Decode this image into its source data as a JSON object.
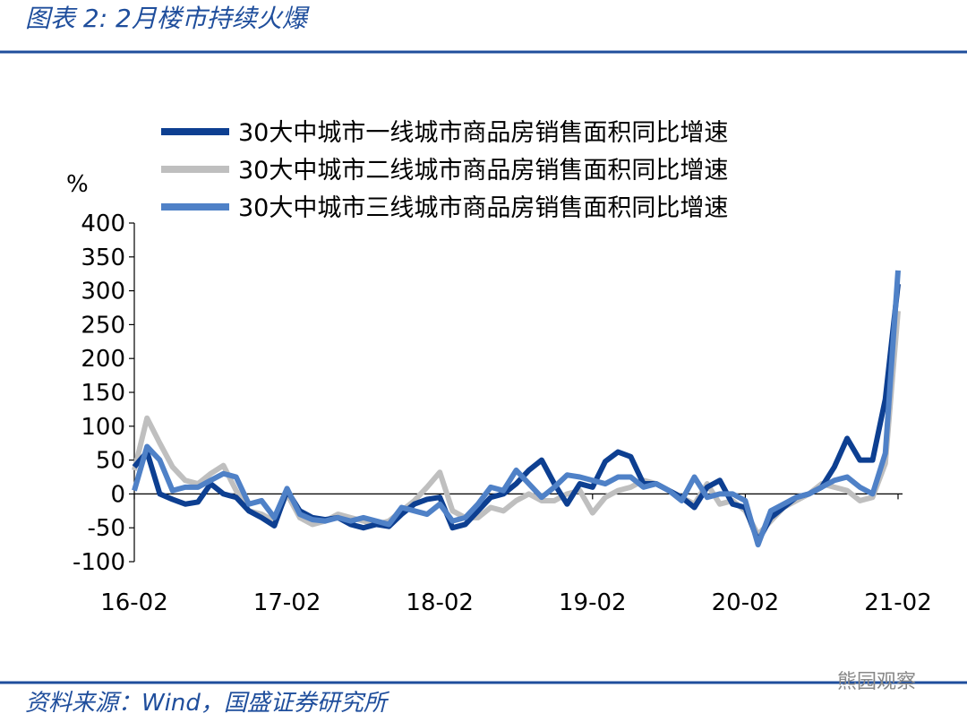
{
  "header": {
    "title": "图表 2:  2月楼市持续火爆"
  },
  "chart_data": {
    "type": "line",
    "y_label": "%",
    "categories": [
      "16-02",
      null,
      null,
      null,
      null,
      null,
      null,
      null,
      null,
      null,
      null,
      null,
      "17-02",
      null,
      null,
      null,
      null,
      null,
      null,
      null,
      null,
      null,
      null,
      null,
      "18-02",
      null,
      null,
      null,
      null,
      null,
      null,
      null,
      null,
      null,
      null,
      null,
      "19-02",
      null,
      null,
      null,
      null,
      null,
      null,
      null,
      null,
      null,
      null,
      null,
      "20-02",
      null,
      null,
      null,
      null,
      null,
      null,
      null,
      null,
      null,
      null,
      null,
      "21-02"
    ],
    "series": [
      {
        "name": "30大中城市一线城市商品房销售面积同比增速",
        "color": "#0d3f91",
        "values": [
          40,
          62,
          0,
          -8,
          -15,
          -12,
          15,
          0,
          -5,
          -25,
          -35,
          -47,
          5,
          -25,
          -35,
          -38,
          -35,
          -45,
          -50,
          -45,
          -48,
          -30,
          -15,
          -8,
          -5,
          -50,
          -45,
          -25,
          -5,
          0,
          15,
          35,
          50,
          15,
          -15,
          15,
          10,
          48,
          62,
          55,
          15,
          15,
          5,
          -5,
          -20,
          10,
          20,
          -15,
          -20,
          -70,
          -35,
          -20,
          -5,
          0,
          10,
          40,
          82,
          50,
          50,
          140,
          310
        ]
      },
      {
        "name": "30大中城市二线城市商品房销售面积同比增速",
        "color": "#bfbfbf",
        "values": [
          35,
          112,
          75,
          40,
          20,
          15,
          30,
          42,
          5,
          -25,
          -30,
          -40,
          0,
          -35,
          -45,
          -40,
          -30,
          -35,
          -40,
          -45,
          -40,
          -25,
          -10,
          10,
          32,
          -25,
          -35,
          -35,
          -20,
          -25,
          -10,
          0,
          -10,
          -10,
          0,
          5,
          -28,
          -5,
          5,
          10,
          20,
          15,
          5,
          -5,
          -15,
          15,
          -15,
          -10,
          -25,
          -60,
          -40,
          -20,
          -10,
          0,
          15,
          10,
          5,
          -10,
          -5,
          45,
          270
        ]
      },
      {
        "name": "30大中城市三线城市商品房销售面积同比增速",
        "color": "#4f81c7",
        "values": [
          5,
          70,
          50,
          5,
          10,
          10,
          20,
          30,
          25,
          -15,
          -10,
          -35,
          8,
          -30,
          -38,
          -40,
          -35,
          -40,
          -35,
          -40,
          -45,
          -20,
          -25,
          -30,
          -15,
          -40,
          -35,
          -15,
          10,
          5,
          35,
          15,
          -5,
          10,
          28,
          25,
          20,
          15,
          25,
          25,
          10,
          15,
          5,
          -10,
          25,
          -5,
          0,
          0,
          -10,
          -75,
          -25,
          -15,
          -5,
          0,
          10,
          20,
          25,
          10,
          0,
          60,
          330
        ]
      }
    ],
    "ylim": [
      -100,
      400
    ],
    "yticks": [
      -100,
      -50,
      0,
      50,
      100,
      150,
      200,
      250,
      300,
      350,
      400
    ]
  },
  "footer": {
    "source": "资料来源：Wind，国盛证券研究所",
    "watermark": "熊园观察"
  }
}
